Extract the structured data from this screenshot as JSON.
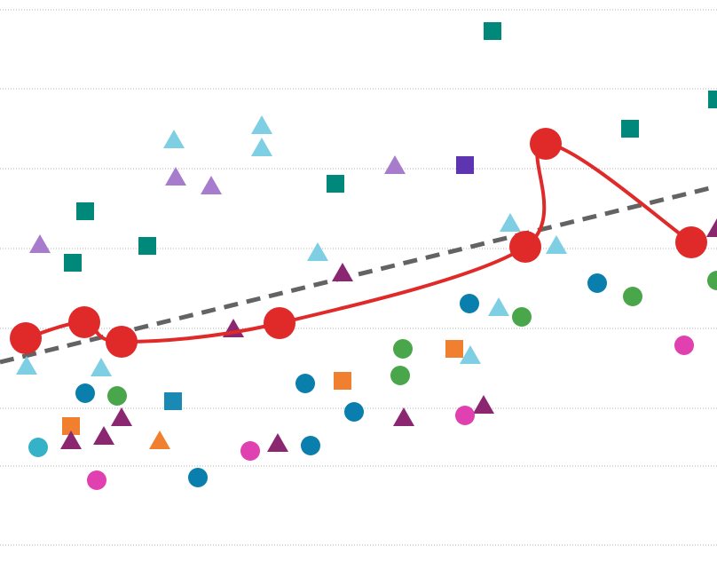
{
  "chart_data": {
    "type": "scatter",
    "xlim": [
      0,
      80.8
    ],
    "ylim": [
      0,
      63.2
    ],
    "yticks": [
      1.8,
      10.7,
      17.2,
      26.2,
      35.2,
      44.2,
      53.2,
      62.1
    ],
    "grid": true,
    "series": [
      {
        "color": "#00897b",
        "marker": "square",
        "x": [
          55.5,
          80.8,
          71.0,
          37.8,
          9.6,
          8.2,
          16.6
        ],
        "y": [
          59.7,
          52.0,
          48.7,
          42.5,
          39.4,
          33.6,
          35.5
        ]
      },
      {
        "color": "#5e35b1",
        "marker": "square",
        "x": [
          52.4
        ],
        "y": [
          44.6
        ]
      },
      {
        "color": "#1a8ab5",
        "marker": "square",
        "x": [
          19.5
        ],
        "y": [
          18.0
        ]
      },
      {
        "color": "#f08030",
        "marker": "square",
        "x": [
          8.0,
          38.6,
          51.2
        ],
        "y": [
          15.2,
          20.3,
          23.9
        ]
      },
      {
        "color": "#f08030",
        "marker": "triangle",
        "x": [
          18.0
        ],
        "y": [
          13.5
        ]
      },
      {
        "color": "#7ecfe4",
        "marker": "triangle",
        "x": [
          19.6,
          29.5,
          29.5,
          35.8,
          57.5,
          62.7,
          56.2,
          53.0,
          11.4,
          3.0
        ],
        "y": [
          47.4,
          49.0,
          46.5,
          34.7,
          38.0,
          35.5,
          28.5,
          23.1,
          21.7,
          21.9
        ]
      },
      {
        "color": "#a87ccc",
        "marker": "triangle",
        "x": [
          4.5,
          19.8,
          23.8,
          44.5
        ],
        "y": [
          35.6,
          43.2,
          42.2,
          44.5
        ]
      },
      {
        "color": "#8b2670",
        "marker": "triangle",
        "x": [
          38.6,
          26.3,
          13.7,
          8.0,
          11.7,
          31.3,
          45.5,
          54.5,
          80.8
        ],
        "y": [
          32.4,
          26.1,
          16.1,
          13.5,
          14.0,
          13.2,
          16.1,
          17.5,
          37.4
        ]
      },
      {
        "color": "#0a7fad",
        "marker": "circle",
        "x": [
          9.6,
          22.3,
          34.4,
          35.0,
          39.9,
          52.9,
          67.3
        ],
        "y": [
          18.9,
          9.4,
          20.0,
          13.0,
          16.8,
          29.0,
          31.3
        ]
      },
      {
        "color": "#36b2c8",
        "marker": "circle",
        "x": [
          4.3
        ],
        "y": [
          12.8
        ]
      },
      {
        "color": "#4aa64a",
        "marker": "circle",
        "x": [
          13.2,
          45.4,
          45.1,
          58.8,
          71.3,
          80.8
        ],
        "y": [
          18.6,
          23.9,
          20.9,
          27.5,
          29.8,
          31.6
        ]
      },
      {
        "color": "#e040b0",
        "marker": "circle",
        "x": [
          10.9,
          28.2,
          52.4,
          77.1
        ],
        "y": [
          9.1,
          12.4,
          16.4,
          24.3
        ]
      },
      {
        "color": "#636363",
        "line": "dashed",
        "x": [
          0,
          80.8
        ],
        "y": [
          22.4,
          42.2
        ]
      },
      {
        "color": "#e02a2a",
        "line": "solid",
        "marker": "big-circle",
        "x": [
          2.9,
          9.5,
          13.7,
          31.5,
          59.2,
          61.5,
          77.9
        ],
        "y": [
          25.1,
          26.9,
          24.7,
          26.8,
          35.4,
          47.0,
          35.9
        ]
      }
    ]
  }
}
